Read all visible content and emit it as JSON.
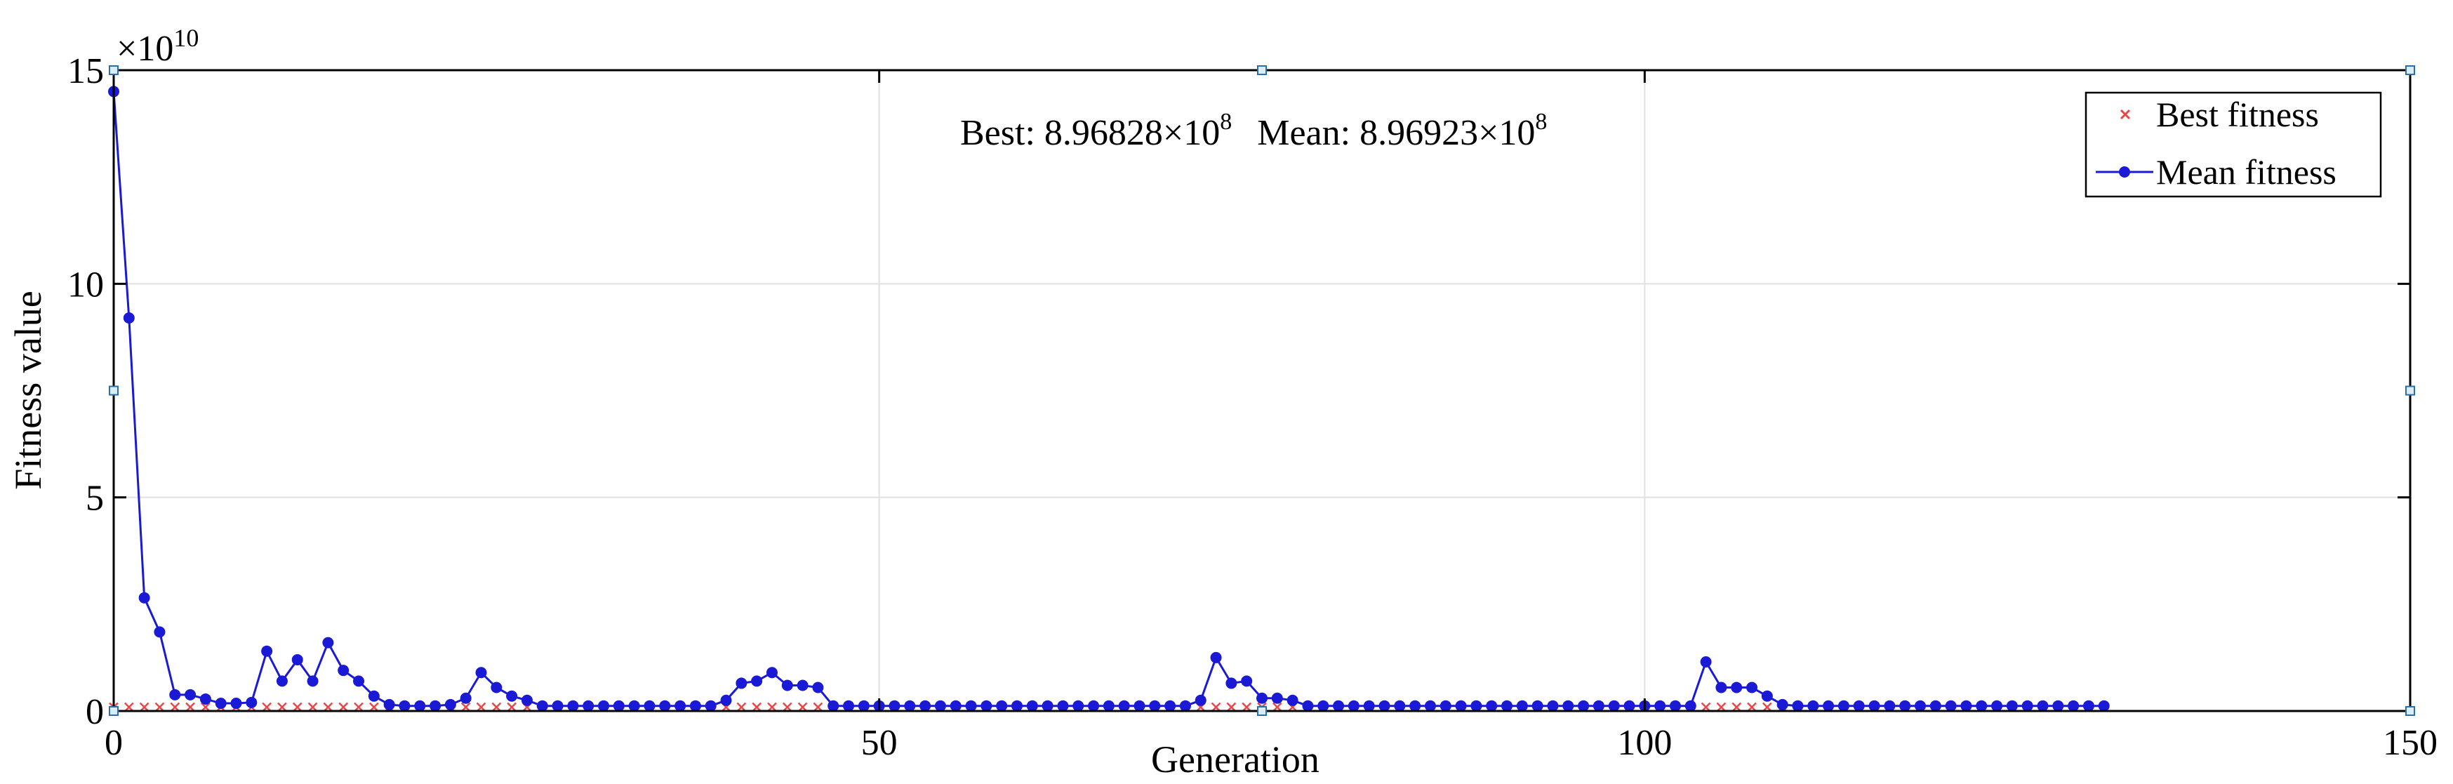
{
  "chart_data": {
    "type": "line",
    "title": "",
    "xlabel": "Generation",
    "ylabel": "Fitness value",
    "exponent_label": {
      "base": "×10",
      "power": "10"
    },
    "xlim": [
      0,
      150
    ],
    "ylim": [
      0,
      15
    ],
    "xticks": [
      0,
      50,
      100,
      150
    ],
    "yticks": [
      0,
      5,
      10,
      15
    ],
    "xtick_labels": [
      "0",
      "50",
      "100",
      "150"
    ],
    "ytick_labels": [
      "0",
      "5",
      "10",
      "15"
    ],
    "grid": true,
    "legend_position": "top-right",
    "annotation": {
      "best_label": "Best: ",
      "best_mantissa": "8.96828×10",
      "best_power": "8",
      "mean_label": "Mean: ",
      "mean_mantissa": "8.96923×10",
      "mean_power": "8"
    },
    "series": [
      {
        "name": "Best fitness",
        "marker": "x",
        "color": "#e8474a",
        "x": [
          0,
          1,
          2,
          3,
          4,
          5,
          6,
          7,
          8,
          9,
          10,
          11,
          12,
          13,
          14,
          15,
          16,
          17,
          18,
          19,
          20,
          21,
          22,
          23,
          24,
          25,
          26,
          27,
          28,
          29,
          30,
          31,
          32,
          33,
          34,
          35,
          36,
          37,
          38,
          39,
          40,
          41,
          42,
          43,
          44,
          45,
          46,
          47,
          48,
          49,
          50,
          51,
          52,
          53,
          54,
          55,
          56,
          57,
          58,
          59,
          60,
          61,
          62,
          63,
          64,
          65,
          66,
          67,
          68,
          69,
          70,
          71,
          72,
          73,
          74,
          75,
          76,
          77,
          78,
          79,
          80,
          81,
          82,
          83,
          84,
          85,
          86,
          87,
          88,
          89,
          90,
          91,
          92,
          93,
          94,
          95,
          96,
          97,
          98,
          99,
          100,
          101,
          102,
          103,
          104,
          105,
          106,
          107,
          108,
          109,
          110,
          111,
          112,
          113,
          114,
          115,
          116,
          117,
          118,
          119,
          120,
          121,
          122,
          123,
          124,
          125,
          126,
          127,
          128,
          129,
          130
        ],
        "y": [
          0.09,
          0.09,
          0.09,
          0.09,
          0.09,
          0.09,
          0.09,
          0.09,
          0.09,
          0.09,
          0.09,
          0.09,
          0.09,
          0.09,
          0.09,
          0.09,
          0.09,
          0.09,
          0.09,
          0.09,
          0.09,
          0.09,
          0.09,
          0.09,
          0.09,
          0.09,
          0.09,
          0.09,
          0.09,
          0.09,
          0.09,
          0.09,
          0.09,
          0.09,
          0.09,
          0.09,
          0.09,
          0.09,
          0.09,
          0.09,
          0.09,
          0.09,
          0.09,
          0.09,
          0.09,
          0.09,
          0.09,
          0.09,
          0.09,
          0.09,
          0.09,
          0.09,
          0.09,
          0.09,
          0.09,
          0.09,
          0.09,
          0.09,
          0.09,
          0.09,
          0.09,
          0.09,
          0.09,
          0.09,
          0.09,
          0.09,
          0.09,
          0.09,
          0.09,
          0.09,
          0.09,
          0.09,
          0.09,
          0.09,
          0.09,
          0.09,
          0.09,
          0.09,
          0.09,
          0.09,
          0.09,
          0.09,
          0.09,
          0.09,
          0.09,
          0.09,
          0.09,
          0.09,
          0.09,
          0.09,
          0.09,
          0.09,
          0.09,
          0.09,
          0.09,
          0.09,
          0.09,
          0.09,
          0.09,
          0.09,
          0.09,
          0.09,
          0.09,
          0.09,
          0.09,
          0.09,
          0.09,
          0.09,
          0.09,
          0.09,
          0.09,
          0.09,
          0.09,
          0.09,
          0.09,
          0.09,
          0.09,
          0.09,
          0.09,
          0.09,
          0.09,
          0.09,
          0.09,
          0.09,
          0.09,
          0.09,
          0.09,
          0.09,
          0.09,
          0.09,
          0.09
        ]
      },
      {
        "name": "Mean fitness",
        "marker": "o",
        "color": "#1a1ad6",
        "x": [
          0,
          1,
          2,
          3,
          4,
          5,
          6,
          7,
          8,
          9,
          10,
          11,
          12,
          13,
          14,
          15,
          16,
          17,
          18,
          19,
          20,
          21,
          22,
          23,
          24,
          25,
          26,
          27,
          28,
          29,
          30,
          31,
          32,
          33,
          34,
          35,
          36,
          37,
          38,
          39,
          40,
          41,
          42,
          43,
          44,
          45,
          46,
          47,
          48,
          49,
          50,
          51,
          52,
          53,
          54,
          55,
          56,
          57,
          58,
          59,
          60,
          61,
          62,
          63,
          64,
          65,
          66,
          67,
          68,
          69,
          70,
          71,
          72,
          73,
          74,
          75,
          76,
          77,
          78,
          79,
          80,
          81,
          82,
          83,
          84,
          85,
          86,
          87,
          88,
          89,
          90,
          91,
          92,
          93,
          94,
          95,
          96,
          97,
          98,
          99,
          100,
          101,
          102,
          103,
          104,
          105,
          106,
          107,
          108,
          109,
          110,
          111,
          112,
          113,
          114,
          115,
          116,
          117,
          118,
          119,
          120,
          121,
          122,
          123,
          124,
          125,
          126,
          127,
          128,
          129,
          130
        ],
        "y": [
          14.5,
          9.2,
          2.65,
          1.85,
          0.38,
          0.38,
          0.28,
          0.18,
          0.18,
          0.2,
          1.4,
          0.7,
          1.2,
          0.7,
          1.6,
          0.95,
          0.7,
          0.35,
          0.15,
          0.12,
          0.12,
          0.12,
          0.15,
          0.3,
          0.9,
          0.55,
          0.35,
          0.25,
          0.12,
          0.12,
          0.12,
          0.12,
          0.12,
          0.12,
          0.12,
          0.12,
          0.12,
          0.12,
          0.12,
          0.12,
          0.25,
          0.65,
          0.7,
          0.9,
          0.6,
          0.6,
          0.55,
          0.12,
          0.12,
          0.12,
          0.12,
          0.12,
          0.12,
          0.12,
          0.12,
          0.12,
          0.12,
          0.12,
          0.12,
          0.12,
          0.12,
          0.12,
          0.12,
          0.12,
          0.12,
          0.12,
          0.12,
          0.12,
          0.12,
          0.12,
          0.12,
          0.25,
          1.25,
          0.65,
          0.7,
          0.3,
          0.3,
          0.25,
          0.12,
          0.12,
          0.12,
          0.12,
          0.12,
          0.12,
          0.12,
          0.12,
          0.12,
          0.12,
          0.12,
          0.12,
          0.12,
          0.12,
          0.12,
          0.12,
          0.12,
          0.12,
          0.12,
          0.12,
          0.12,
          0.12,
          0.12,
          0.12,
          0.12,
          0.12,
          1.15,
          0.55,
          0.55,
          0.55,
          0.35,
          0.15,
          0.12,
          0.12,
          0.12,
          0.12,
          0.12,
          0.12,
          0.12,
          0.12,
          0.12,
          0.12,
          0.12,
          0.12,
          0.12,
          0.12,
          0.12,
          0.12,
          0.12,
          0.12,
          0.12,
          0.12,
          0.12
        ]
      }
    ]
  }
}
